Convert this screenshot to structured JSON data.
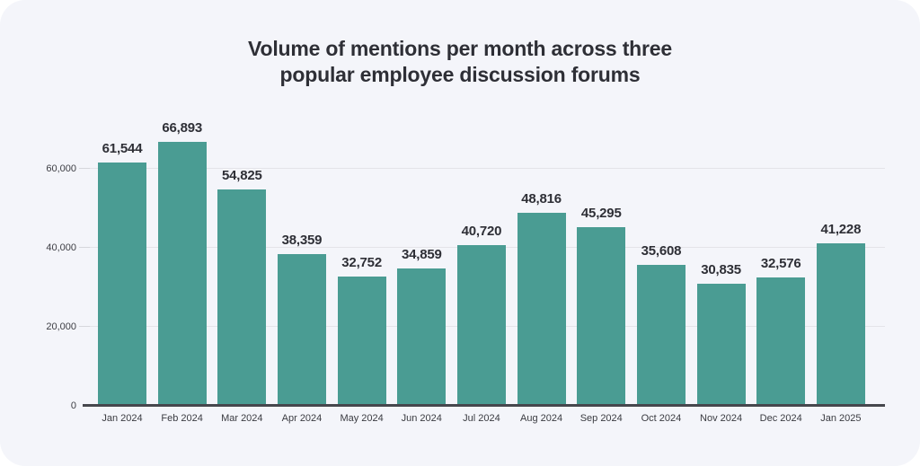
{
  "chart_data": {
    "type": "bar",
    "title": "Volume of mentions per month across three popular employee discussion forums",
    "categories": [
      "Jan 2024",
      "Feb 2024",
      "Mar 2024",
      "Apr 2024",
      "May 2024",
      "Jun 2024",
      "Jul 2024",
      "Aug 2024",
      "Sep 2024",
      "Oct 2024",
      "Nov 2024",
      "Dec 2024",
      "Jan 2025"
    ],
    "values": [
      61544,
      66893,
      54825,
      38359,
      32752,
      34859,
      40720,
      48816,
      45295,
      35608,
      30835,
      32576,
      41228
    ],
    "value_labels": [
      "61,544",
      "66,893",
      "54,825",
      "38,359",
      "32,752",
      "34,859",
      "40,720",
      "48,816",
      "45,295",
      "35,608",
      "30,835",
      "32,576",
      "41,228"
    ],
    "xlabel": "",
    "ylabel": "",
    "ylim": [
      0,
      70909
    ],
    "yticks": [
      0,
      20000,
      40000,
      60000
    ],
    "ytick_labels": [
      "0",
      "20,000",
      "40,000",
      "60,000"
    ],
    "grid": true,
    "legend": false,
    "bar_color": "#4a9c93",
    "card_background": "#f4f5fa",
    "page_background": "#ffffff",
    "text_color": "#2e2f36"
  }
}
